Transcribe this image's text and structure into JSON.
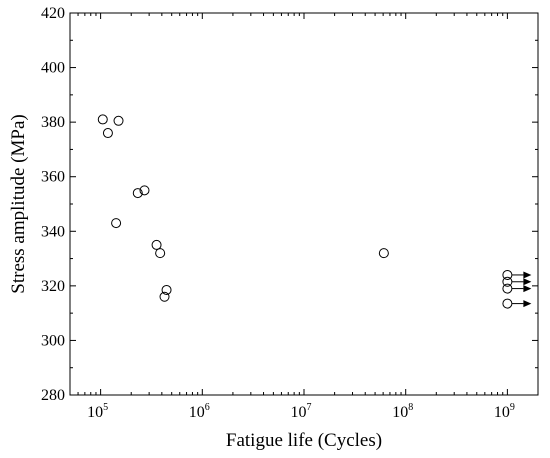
{
  "chart_data": {
    "type": "scatter",
    "xlabel": "Fatigue life (Cycles)",
    "ylabel": "Stress amplitude (MPa)",
    "x_scale": "log",
    "xlim": [
      50000,
      2000000000
    ],
    "ylim": [
      280,
      420
    ],
    "x_ticks": [
      {
        "base": "10",
        "exp": "5",
        "value": 100000
      },
      {
        "base": "10",
        "exp": "6",
        "value": 1000000
      },
      {
        "base": "10",
        "exp": "7",
        "value": 10000000
      },
      {
        "base": "10",
        "exp": "8",
        "value": 100000000
      },
      {
        "base": "10",
        "exp": "9",
        "value": 1000000000
      }
    ],
    "y_ticks": [
      280,
      300,
      320,
      340,
      360,
      380,
      400,
      420
    ],
    "grid": false,
    "series": [
      {
        "marker": "open-circle",
        "points": [
          {
            "x": 105000,
            "y": 381
          },
          {
            "x": 150000,
            "y": 380.5
          },
          {
            "x": 118000,
            "y": 376
          },
          {
            "x": 232000,
            "y": 354
          },
          {
            "x": 270000,
            "y": 355
          },
          {
            "x": 142000,
            "y": 343
          },
          {
            "x": 355000,
            "y": 335
          },
          {
            "x": 385000,
            "y": 332
          },
          {
            "x": 445000,
            "y": 318.5
          },
          {
            "x": 425000,
            "y": 316
          },
          {
            "x": 61000000,
            "y": 332
          }
        ]
      },
      {
        "marker": "open-circle-with-arrow",
        "note": "runout",
        "points": [
          {
            "x": 1000000000,
            "y": 324
          },
          {
            "x": 1000000000,
            "y": 321.5
          },
          {
            "x": 1000000000,
            "y": 319
          },
          {
            "x": 1000000000,
            "y": 313.5
          }
        ]
      }
    ]
  }
}
